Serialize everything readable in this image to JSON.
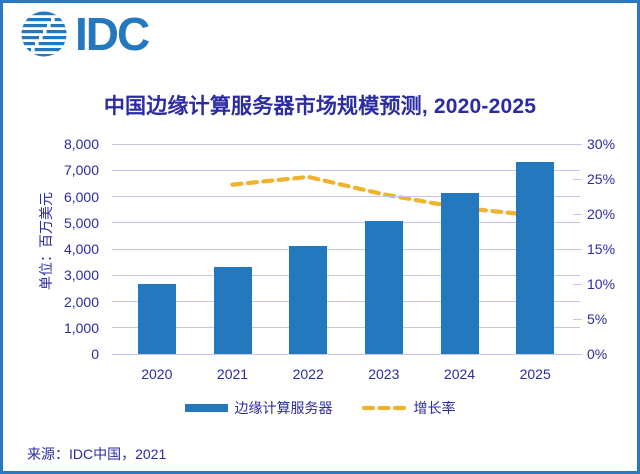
{
  "logo": {
    "text": "IDC",
    "icon": "striped-globe-icon"
  },
  "source_note": "来源：IDC中国，2021",
  "colors": {
    "bar_blue": "#2478BE",
    "line_gold": "#F0B42C",
    "gridline_lavender": "#C8C4EA",
    "text_navy": "#2B2BA3",
    "frame_border_blue": "#2879BF"
  },
  "chart_data": {
    "type": "bar",
    "title": "中国边缘计算服务器市场规模预测, 2020-2025",
    "categories": [
      "2020",
      "2021",
      "2022",
      "2023",
      "2024",
      "2025"
    ],
    "series": [
      {
        "name": "边缘计算服务器",
        "type": "bar",
        "axis": "left",
        "values": [
          2670,
          3310,
          4130,
          5080,
          6130,
          7310
        ]
      },
      {
        "name": "增长率",
        "type": "dashed-line",
        "axis": "right",
        "values": [
          null,
          24.2,
          25.3,
          22.8,
          20.9,
          19.8
        ]
      }
    ],
    "left_axis": {
      "label": "单位：百万美元",
      "min": 0,
      "max": 8000,
      "step": 1000,
      "ticks": [
        "8,000",
        "7,000",
        "6,000",
        "5,000",
        "4,000",
        "3,000",
        "2,000",
        "1,000",
        "0"
      ]
    },
    "right_axis": {
      "min": 0,
      "max": 30,
      "step": 5,
      "ticks": [
        "30%",
        "25%",
        "20%",
        "15%",
        "10%",
        "5%",
        "0%"
      ]
    },
    "legend": [
      {
        "label": "边缘计算服务器",
        "swatch": "bar"
      },
      {
        "label": "增长率",
        "swatch": "dashed-line"
      }
    ],
    "grid": true,
    "legend_position": "bottom"
  }
}
